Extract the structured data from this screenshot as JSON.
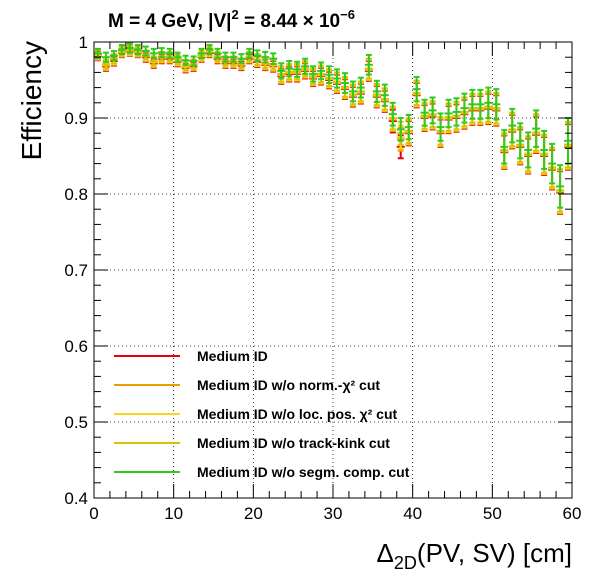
{
  "chart_data": {
    "type": "scatter",
    "title": "M = 4 GeV, |V|² = 8.44 × 10⁻⁶",
    "title_parts": {
      "main": "M = 4 GeV, |V|",
      "exp1": "2",
      "mid": " = 8.44  × 10",
      "exp2": "−6"
    },
    "xlabel": "Δ2D(PV, SV) [cm]",
    "xlabel_parts": {
      "main": "Δ",
      "sub": "2D",
      "rest": "(PV, SV) [cm]"
    },
    "ylabel": "Efficiency",
    "xlim": [
      0,
      60
    ],
    "ylim": [
      0.4,
      1.0
    ],
    "xticks": [
      "0",
      "10",
      "20",
      "30",
      "40",
      "50",
      "60"
    ],
    "yticks": [
      "0.4",
      "0.5",
      "0.6",
      "0.7",
      "0.8",
      "0.9",
      "1"
    ],
    "grid": true,
    "legend_position": "bottom-left",
    "bin_width": 1,
    "x": [
      0.5,
      1.5,
      2.5,
      3.5,
      4.5,
      5.5,
      6.5,
      7.5,
      8.5,
      9.5,
      10.5,
      11.5,
      12.5,
      13.5,
      14.5,
      15.5,
      16.5,
      17.5,
      18.5,
      19.5,
      20.5,
      21.5,
      22.5,
      23.5,
      24.5,
      25.5,
      26.5,
      27.5,
      28.5,
      29.5,
      30.5,
      31.5,
      32.5,
      33.5,
      34.5,
      35.5,
      36.5,
      37.5,
      38.5,
      39.5,
      40.5,
      41.5,
      42.5,
      43.5,
      44.5,
      45.5,
      46.5,
      47.5,
      48.5,
      49.5,
      50.5,
      51.5,
      52.5,
      53.5,
      54.5,
      55.5,
      56.5,
      57.5,
      58.5,
      59.5
    ],
    "series": [
      {
        "name": "Medium ID",
        "color": "#e8000b",
        "values": [
          0.982,
          0.968,
          0.975,
          0.986,
          0.988,
          0.986,
          0.98,
          0.972,
          0.978,
          0.978,
          0.974,
          0.966,
          0.968,
          0.98,
          0.986,
          0.978,
          0.972,
          0.972,
          0.969,
          0.978,
          0.974,
          0.97,
          0.968,
          0.955,
          0.958,
          0.958,
          0.962,
          0.952,
          0.955,
          0.95,
          0.945,
          0.938,
          0.928,
          0.932,
          0.962,
          0.928,
          0.922,
          0.896,
          0.862,
          0.88,
          0.93,
          0.9,
          0.902,
          0.88,
          0.898,
          0.9,
          0.905,
          0.91,
          0.91,
          0.912,
          0.91,
          0.855,
          0.882,
          0.862,
          0.85,
          0.878,
          0.85,
          0.832,
          0.802,
          0.862
        ],
        "errors": [
          0.006,
          0.006,
          0.006,
          0.006,
          0.006,
          0.006,
          0.006,
          0.006,
          0.006,
          0.006,
          0.006,
          0.006,
          0.006,
          0.006,
          0.006,
          0.006,
          0.006,
          0.006,
          0.006,
          0.006,
          0.007,
          0.007,
          0.007,
          0.01,
          0.01,
          0.01,
          0.01,
          0.01,
          0.011,
          0.011,
          0.012,
          0.013,
          0.013,
          0.013,
          0.013,
          0.014,
          0.014,
          0.015,
          0.015,
          0.016,
          0.016,
          0.017,
          0.017,
          0.018,
          0.018,
          0.018,
          0.019,
          0.019,
          0.019,
          0.02,
          0.02,
          0.022,
          0.022,
          0.023,
          0.023,
          0.024,
          0.025,
          0.026,
          0.028,
          0.03
        ]
      },
      {
        "name": "Medium ID w/o norm.-χ² cut",
        "color": "#e8a000",
        "values": [
          0.983,
          0.969,
          0.976,
          0.987,
          0.989,
          0.987,
          0.981,
          0.973,
          0.979,
          0.979,
          0.975,
          0.967,
          0.969,
          0.981,
          0.987,
          0.979,
          0.973,
          0.973,
          0.97,
          0.979,
          0.975,
          0.971,
          0.969,
          0.956,
          0.959,
          0.959,
          0.963,
          0.953,
          0.956,
          0.951,
          0.946,
          0.939,
          0.929,
          0.933,
          0.963,
          0.929,
          0.923,
          0.898,
          0.872,
          0.881,
          0.931,
          0.901,
          0.903,
          0.881,
          0.899,
          0.901,
          0.906,
          0.911,
          0.911,
          0.913,
          0.911,
          0.856,
          0.883,
          0.863,
          0.851,
          0.879,
          0.851,
          0.833,
          0.803,
          0.863
        ],
        "errors": [
          0.006,
          0.006,
          0.006,
          0.006,
          0.006,
          0.006,
          0.006,
          0.006,
          0.006,
          0.006,
          0.006,
          0.006,
          0.006,
          0.006,
          0.006,
          0.006,
          0.006,
          0.006,
          0.006,
          0.006,
          0.007,
          0.007,
          0.007,
          0.01,
          0.01,
          0.01,
          0.01,
          0.01,
          0.011,
          0.011,
          0.012,
          0.013,
          0.013,
          0.013,
          0.013,
          0.014,
          0.014,
          0.015,
          0.015,
          0.016,
          0.016,
          0.017,
          0.017,
          0.018,
          0.018,
          0.018,
          0.019,
          0.019,
          0.019,
          0.02,
          0.02,
          0.022,
          0.022,
          0.023,
          0.023,
          0.024,
          0.025,
          0.026,
          0.028,
          0.03
        ]
      },
      {
        "name": "Medium ID w/o loc. pos. χ² cut",
        "color": "#ffd21e",
        "values": [
          0.983,
          0.97,
          0.977,
          0.987,
          0.989,
          0.987,
          0.982,
          0.974,
          0.98,
          0.98,
          0.976,
          0.968,
          0.97,
          0.982,
          0.988,
          0.98,
          0.974,
          0.974,
          0.971,
          0.98,
          0.976,
          0.972,
          0.97,
          0.957,
          0.96,
          0.96,
          0.964,
          0.954,
          0.957,
          0.952,
          0.947,
          0.94,
          0.93,
          0.934,
          0.964,
          0.93,
          0.924,
          0.899,
          0.875,
          0.882,
          0.932,
          0.902,
          0.904,
          0.882,
          0.9,
          0.902,
          0.907,
          0.912,
          0.912,
          0.914,
          0.912,
          0.857,
          0.884,
          0.864,
          0.852,
          0.88,
          0.852,
          0.834,
          0.804,
          0.864
        ],
        "errors": [
          0.006,
          0.006,
          0.006,
          0.006,
          0.006,
          0.006,
          0.006,
          0.006,
          0.006,
          0.006,
          0.006,
          0.006,
          0.006,
          0.006,
          0.006,
          0.006,
          0.006,
          0.006,
          0.006,
          0.006,
          0.007,
          0.007,
          0.007,
          0.01,
          0.01,
          0.01,
          0.01,
          0.01,
          0.011,
          0.011,
          0.012,
          0.013,
          0.013,
          0.013,
          0.013,
          0.014,
          0.014,
          0.015,
          0.015,
          0.016,
          0.016,
          0.017,
          0.017,
          0.018,
          0.018,
          0.018,
          0.019,
          0.019,
          0.019,
          0.02,
          0.02,
          0.022,
          0.022,
          0.023,
          0.023,
          0.024,
          0.025,
          0.026,
          0.028,
          0.03
        ]
      },
      {
        "name": "Medium ID w/o track-kink cut",
        "color": "#d7c300",
        "values": [
          0.984,
          0.971,
          0.978,
          0.988,
          0.99,
          0.988,
          0.983,
          0.975,
          0.981,
          0.981,
          0.977,
          0.969,
          0.971,
          0.983,
          0.989,
          0.981,
          0.975,
          0.975,
          0.972,
          0.981,
          0.977,
          0.973,
          0.971,
          0.958,
          0.961,
          0.961,
          0.965,
          0.955,
          0.958,
          0.953,
          0.948,
          0.941,
          0.931,
          0.935,
          0.965,
          0.931,
          0.925,
          0.9,
          0.88,
          0.883,
          0.933,
          0.903,
          0.905,
          0.883,
          0.901,
          0.903,
          0.908,
          0.913,
          0.913,
          0.915,
          0.913,
          0.858,
          0.885,
          0.865,
          0.853,
          0.881,
          0.853,
          0.835,
          0.805,
          0.865
        ],
        "errors": [
          0.006,
          0.006,
          0.006,
          0.006,
          0.006,
          0.006,
          0.006,
          0.006,
          0.006,
          0.006,
          0.006,
          0.006,
          0.006,
          0.006,
          0.006,
          0.006,
          0.006,
          0.006,
          0.006,
          0.006,
          0.007,
          0.007,
          0.007,
          0.01,
          0.01,
          0.01,
          0.01,
          0.01,
          0.011,
          0.011,
          0.012,
          0.013,
          0.013,
          0.013,
          0.013,
          0.014,
          0.014,
          0.015,
          0.015,
          0.016,
          0.016,
          0.017,
          0.017,
          0.018,
          0.018,
          0.018,
          0.019,
          0.019,
          0.019,
          0.02,
          0.02,
          0.022,
          0.022,
          0.023,
          0.023,
          0.024,
          0.025,
          0.026,
          0.028,
          0.03
        ]
      },
      {
        "name": "Medium ID w/o segm. comp. cut",
        "color": "#32c81e",
        "values": [
          0.985,
          0.98,
          0.982,
          0.99,
          0.992,
          0.99,
          0.988,
          0.985,
          0.986,
          0.985,
          0.98,
          0.976,
          0.975,
          0.985,
          0.99,
          0.985,
          0.98,
          0.98,
          0.978,
          0.985,
          0.982,
          0.98,
          0.978,
          0.962,
          0.965,
          0.964,
          0.968,
          0.958,
          0.962,
          0.957,
          0.952,
          0.946,
          0.935,
          0.94,
          0.97,
          0.935,
          0.93,
          0.905,
          0.885,
          0.888,
          0.938,
          0.907,
          0.91,
          0.888,
          0.906,
          0.908,
          0.913,
          0.918,
          0.918,
          0.92,
          0.918,
          0.862,
          0.89,
          0.87,
          0.858,
          0.886,
          0.858,
          0.84,
          0.81,
          0.87
        ],
        "errors": [
          0.006,
          0.006,
          0.006,
          0.006,
          0.006,
          0.006,
          0.006,
          0.006,
          0.006,
          0.006,
          0.006,
          0.006,
          0.006,
          0.006,
          0.006,
          0.006,
          0.006,
          0.006,
          0.006,
          0.006,
          0.007,
          0.007,
          0.007,
          0.01,
          0.01,
          0.01,
          0.01,
          0.01,
          0.011,
          0.011,
          0.012,
          0.013,
          0.013,
          0.013,
          0.013,
          0.014,
          0.014,
          0.015,
          0.015,
          0.016,
          0.016,
          0.017,
          0.017,
          0.018,
          0.018,
          0.018,
          0.019,
          0.019,
          0.019,
          0.02,
          0.02,
          0.022,
          0.022,
          0.023,
          0.023,
          0.024,
          0.025,
          0.026,
          0.028,
          0.03
        ]
      }
    ]
  }
}
